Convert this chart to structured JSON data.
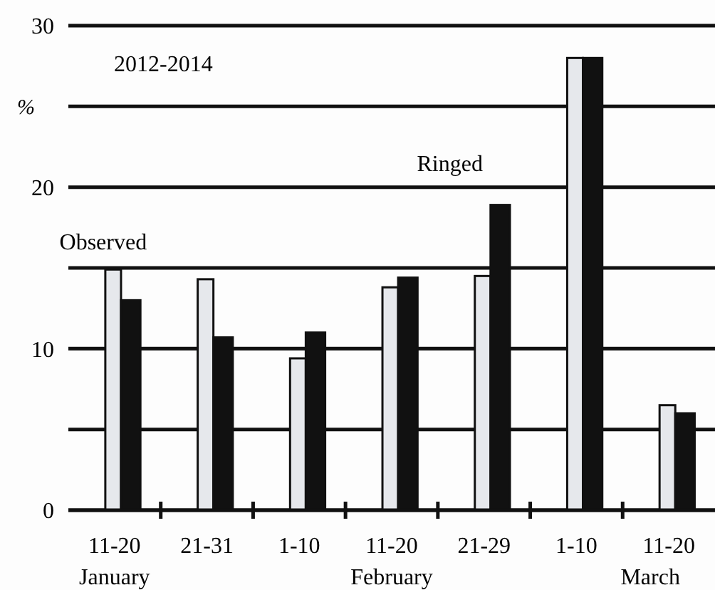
{
  "chart_data": {
    "type": "bar",
    "ylabel": "%",
    "categories": [
      "11-20",
      "21-31",
      "1-10",
      "11-20",
      "21-29",
      "1-10",
      "11-20"
    ],
    "series": [
      {
        "name": "Observed",
        "color": "#e6e8ec",
        "values": [
          14.9,
          14.3,
          9.4,
          13.8,
          14.5,
          28.0,
          6.5
        ]
      },
      {
        "name": "Ringed",
        "color": "#111111",
        "values": [
          13.0,
          10.7,
          11.0,
          14.4,
          18.9,
          28.0,
          6.0
        ]
      }
    ],
    "ylim": [
      0,
      30
    ],
    "yticks": [
      0,
      {
        "value": 5,
        "label": null
      },
      10,
      {
        "value": 15,
        "label": null
      },
      20,
      {
        "value": 25,
        "label": null
      },
      30
    ],
    "grid": "y",
    "legend": false,
    "annotations": [
      "2012-2014",
      "January",
      "February",
      "March"
    ]
  }
}
